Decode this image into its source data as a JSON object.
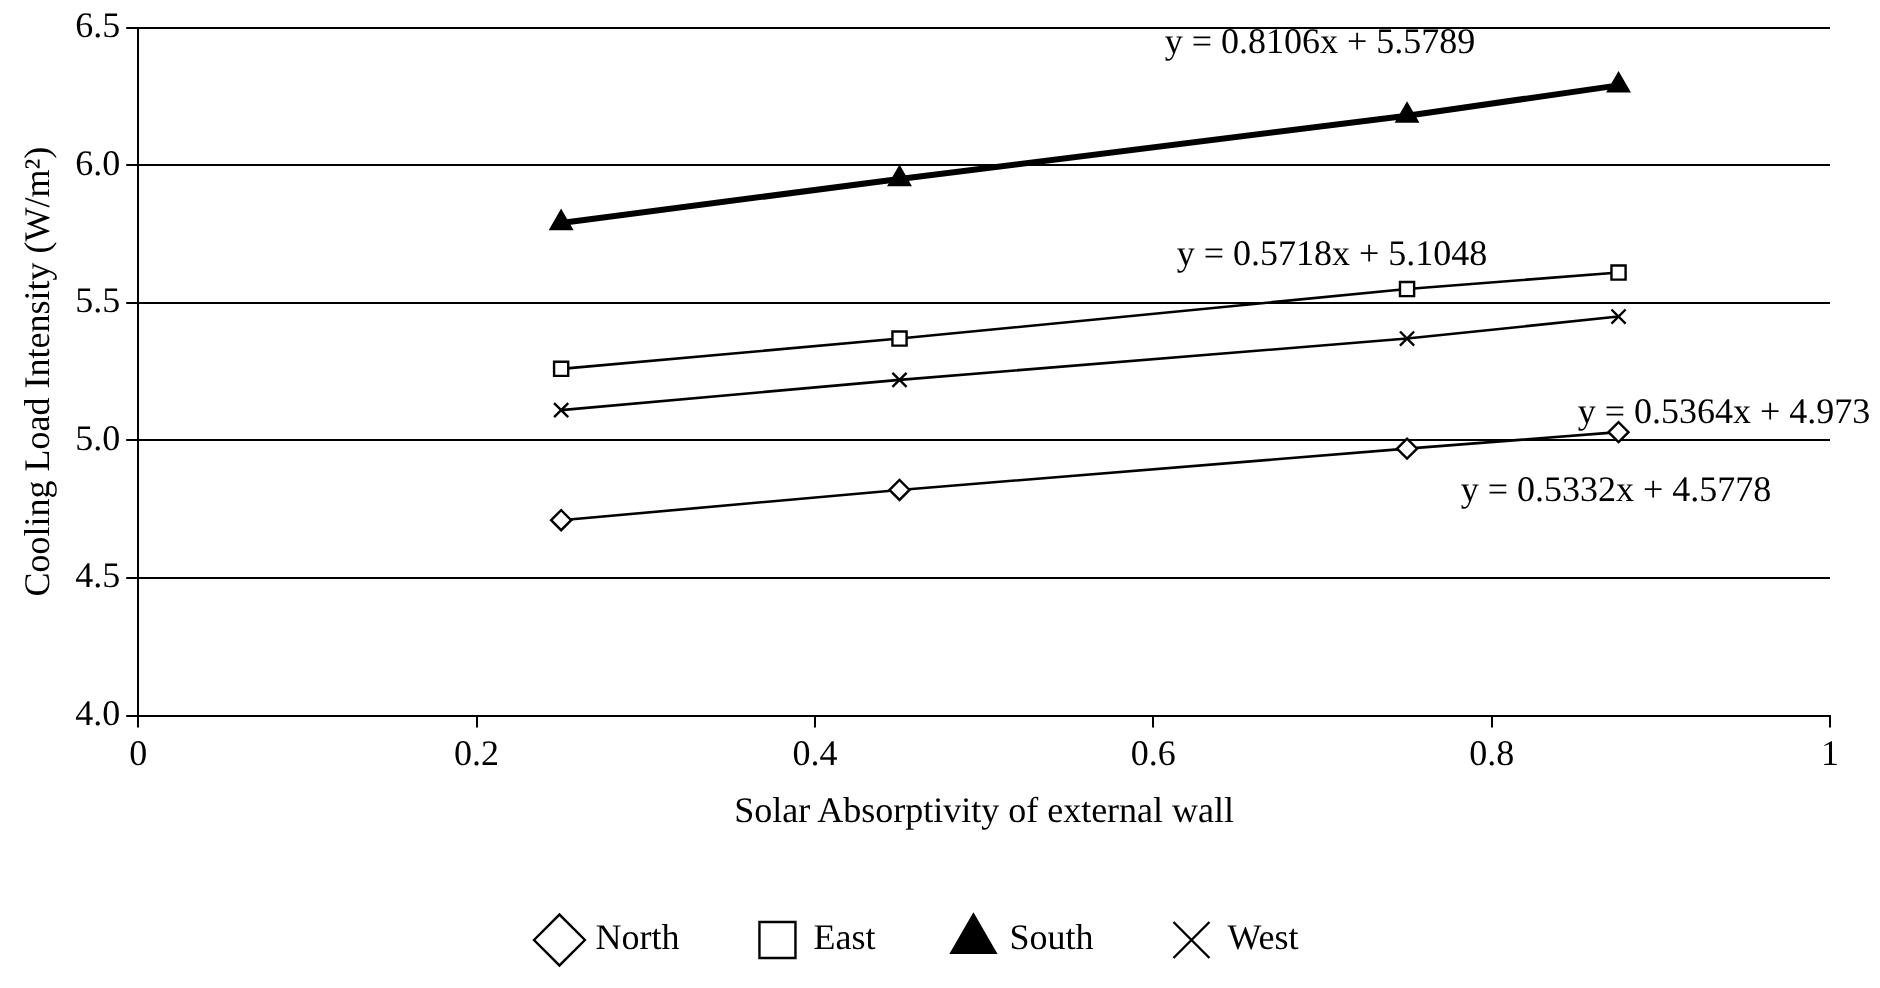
{
  "chart_data": {
    "type": "line",
    "xlabel": "Solar Absorptivity of external wall",
    "ylabel": "Cooling Load Intensity (W/m²)",
    "x": [
      0.25,
      0.45,
      0.75,
      0.875
    ],
    "series": [
      {
        "name": "North",
        "color": "#000000",
        "marker": "diamond",
        "values": [
          4.71,
          4.82,
          4.97,
          5.03
        ]
      },
      {
        "name": "East",
        "color": "#000000",
        "marker": "square",
        "values": [
          5.26,
          5.37,
          5.55,
          5.61
        ]
      },
      {
        "name": "South",
        "color": "#000000",
        "marker": "triangle",
        "values": [
          5.79,
          5.95,
          6.18,
          6.29
        ]
      },
      {
        "name": "West",
        "color": "#000000",
        "marker": "cross",
        "values": [
          5.11,
          5.22,
          5.37,
          5.45
        ]
      }
    ],
    "xlim": [
      0,
      1
    ],
    "xticks": [
      0,
      0.2,
      0.4,
      0.6,
      0.8,
      1
    ],
    "ylim": [
      4.0,
      6.5
    ],
    "yticks": [
      {
        "value": 4.0,
        "label": "4.0"
      },
      {
        "value": 4.5,
        "label": "4.5"
      },
      {
        "value": 5.0,
        "label": "5.0"
      },
      {
        "value": 5.5,
        "label": "5.5"
      },
      {
        "value": 6.0,
        "label": "6.0"
      },
      {
        "value": 6.5,
        "label": "6.5"
      }
    ],
    "grid": "y",
    "legend": "bottom",
    "annotations": [
      "y = 0.8106x + 5.5789",
      "y = 0.5718x + 5.1048",
      "y = 0.5364x + 4.973",
      "y = 0.5332x + 4.5778"
    ]
  }
}
